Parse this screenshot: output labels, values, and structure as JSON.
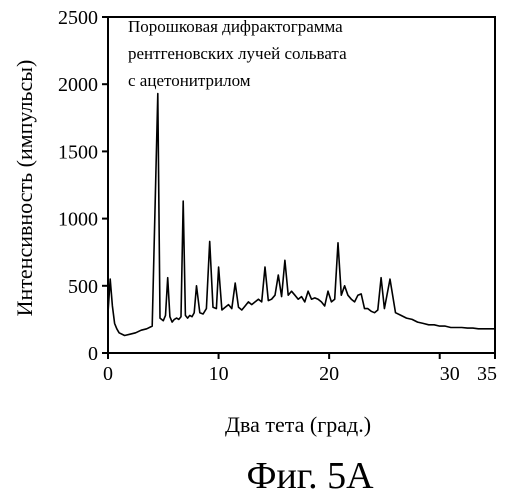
{
  "chart_data": {
    "type": "line",
    "title": "",
    "annotation": [
      "Порошковая дифрактограмма",
      "рентгеновских лучей сольвата",
      "с ацетонитрилом"
    ],
    "xlabel": "Два тета (град.)",
    "ylabel": "Интенсивность (импульсы)",
    "xlim": [
      0,
      35
    ],
    "ylim": [
      0,
      2500
    ],
    "x_ticks": [
      {
        "value": 0,
        "label": "0"
      },
      {
        "value": 10,
        "label": "10"
      },
      {
        "value": 20,
        "label": "20"
      },
      {
        "value": 30,
        "label": "30"
      },
      {
        "value": 35,
        "label": "35"
      }
    ],
    "y_ticks": [
      {
        "value": 0,
        "label": "0"
      },
      {
        "value": 500,
        "label": "500"
      },
      {
        "value": 1000,
        "label": "1000"
      },
      {
        "value": 1500,
        "label": "1500"
      },
      {
        "value": 2000,
        "label": "2000"
      },
      {
        "value": 2500,
        "label": "2500"
      }
    ],
    "grid": false,
    "line_color": "#000000",
    "series": [
      {
        "x": [
          0.0,
          0.2,
          0.4,
          0.6,
          0.8,
          1.0,
          1.5,
          2.0,
          2.5,
          3.0,
          3.5,
          4.0,
          4.5,
          4.7,
          5.0,
          5.2,
          5.4,
          5.6,
          5.8,
          6.0,
          6.2,
          6.4,
          6.6,
          6.8,
          7.0,
          7.2,
          7.4,
          7.6,
          7.8,
          8.0,
          8.3,
          8.6,
          8.9,
          9.2,
          9.5,
          9.8,
          10.0,
          10.3,
          10.6,
          10.9,
          11.2,
          11.5,
          11.8,
          12.1,
          12.4,
          12.7,
          13.0,
          13.3,
          13.6,
          13.9,
          14.2,
          14.5,
          14.8,
          15.1,
          15.4,
          15.7,
          16.0,
          16.3,
          16.6,
          16.9,
          17.2,
          17.5,
          17.8,
          18.1,
          18.4,
          18.7,
          19.0,
          19.3,
          19.6,
          19.9,
          20.2,
          20.5,
          20.8,
          21.1,
          21.4,
          21.7,
          22.0,
          22.3,
          22.6,
          22.9,
          23.2,
          23.5,
          23.8,
          24.1,
          24.4,
          24.7,
          25.0,
          25.5,
          26.0,
          26.5,
          27.0,
          27.5,
          28.0,
          28.5,
          29.0,
          29.5,
          30.0,
          30.5,
          31.0,
          31.5,
          32.0,
          32.5,
          33.0,
          33.5,
          34.0,
          34.5,
          35.0
        ],
        "y": [
          300,
          550,
          350,
          220,
          180,
          150,
          130,
          140,
          150,
          170,
          180,
          200,
          1930,
          260,
          240,
          280,
          560,
          270,
          230,
          250,
          260,
          250,
          270,
          1130,
          280,
          260,
          280,
          270,
          300,
          500,
          300,
          290,
          330,
          830,
          340,
          330,
          640,
          320,
          340,
          360,
          330,
          520,
          340,
          320,
          350,
          380,
          360,
          380,
          400,
          380,
          640,
          390,
          400,
          430,
          580,
          420,
          690,
          430,
          460,
          430,
          400,
          420,
          380,
          460,
          400,
          410,
          400,
          380,
          350,
          460,
          380,
          400,
          820,
          430,
          500,
          430,
          400,
          380,
          430,
          440,
          330,
          330,
          310,
          300,
          320,
          560,
          330,
          550,
          300,
          280,
          260,
          250,
          230,
          220,
          210,
          210,
          200,
          200,
          190,
          190,
          190,
          185,
          185,
          180,
          180,
          180,
          180
        ]
      }
    ]
  },
  "caption": "Фиг. 5А"
}
